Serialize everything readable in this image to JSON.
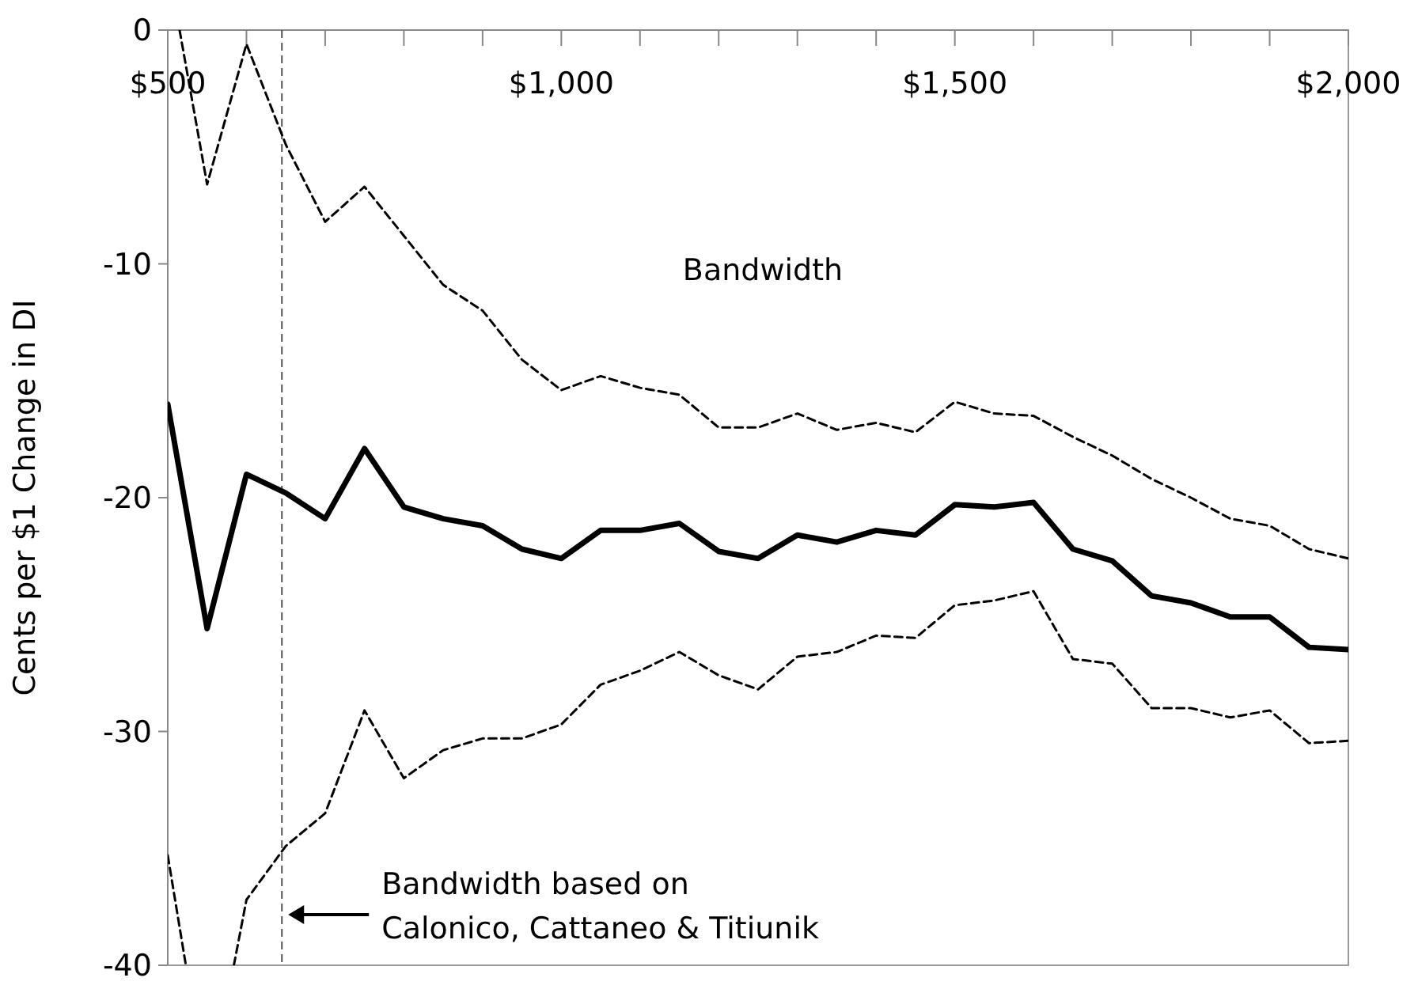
{
  "chart_data": {
    "type": "line",
    "xlabel": "Bandwidth",
    "ylabel": "Cents per $1 Change in DI",
    "x": [
      500,
      550,
      600,
      650,
      700,
      750,
      800,
      850,
      900,
      950,
      1000,
      1050,
      1100,
      1150,
      1200,
      1250,
      1300,
      1350,
      1400,
      1450,
      1500,
      1550,
      1600,
      1650,
      1700,
      1750,
      1800,
      1850,
      1900,
      1950,
      2000
    ],
    "series": [
      {
        "color": "#000000",
        "line_style": "solid",
        "values": [
          -16.0,
          -25.6,
          -19.0,
          -19.8,
          -20.9,
          -17.9,
          -20.4,
          -20.9,
          -21.2,
          -22.2,
          -22.6,
          -21.4,
          -21.4,
          -21.1,
          -22.3,
          -22.6,
          -21.6,
          -21.9,
          -21.4,
          -21.6,
          -20.3,
          -20.4,
          -20.2,
          -22.2,
          -22.7,
          -24.2,
          -24.5,
          -25.1,
          -25.1,
          -26.4,
          -26.5
        ]
      },
      {
        "color": "#000000",
        "line_style": "dashed",
        "x": [
          515,
          550,
          600,
          650,
          700,
          750,
          800,
          850,
          900,
          950,
          1000,
          1050,
          1100,
          1150,
          1200,
          1250,
          1300,
          1350,
          1400,
          1450,
          1500,
          1550,
          1600,
          1650,
          1700,
          1750,
          1800,
          1850,
          1900,
          1950,
          2000
        ],
        "values": [
          0,
          -6.6,
          -0.6,
          -4.9,
          -8.2,
          -6.7,
          -8.8,
          -10.9,
          -12.0,
          -14.1,
          -15.4,
          -14.8,
          -15.3,
          -15.6,
          -17.0,
          -17.0,
          -16.4,
          -17.1,
          -16.8,
          -17.2,
          -15.9,
          -16.4,
          -16.5,
          -17.4,
          -18.2,
          -19.2,
          -20.0,
          -20.9,
          -21.2,
          -22.2,
          -22.6
        ]
      },
      {
        "color": "#000000",
        "line_style": "dashed",
        "x": [
          500,
          523,
          550,
          584,
          600,
          650,
          700,
          750,
          800,
          850,
          900,
          950,
          1000,
          1050,
          1100,
          1150,
          1200,
          1250,
          1300,
          1350,
          1400,
          1450,
          1500,
          1550,
          1600,
          1650,
          1700,
          1750,
          1800,
          1850,
          1900,
          1950,
          2000
        ],
        "values": [
          -35.3,
          -40,
          null,
          -40,
          -37.2,
          -34.9,
          -33.5,
          -29.1,
          -32.0,
          -30.8,
          -30.3,
          -30.3,
          -29.7,
          -28.0,
          -27.4,
          -26.6,
          -27.6,
          -28.2,
          -26.8,
          -26.6,
          -25.9,
          -26.0,
          -24.6,
          -24.4,
          -24.0,
          -26.9,
          -27.1,
          -29.0,
          -29.0,
          -29.4,
          -29.1,
          -30.5,
          -30.4
        ]
      }
    ],
    "xlim": [
      500,
      2000
    ],
    "xticks": [
      {
        "value": 500,
        "label": "$500"
      },
      {
        "value": 600,
        "label": null
      },
      {
        "value": 700,
        "label": null
      },
      {
        "value": 800,
        "label": null
      },
      {
        "value": 900,
        "label": null
      },
      {
        "value": 1000,
        "label": "$1,000"
      },
      {
        "value": 1100,
        "label": null
      },
      {
        "value": 1200,
        "label": null
      },
      {
        "value": 1300,
        "label": null
      },
      {
        "value": 1400,
        "label": null
      },
      {
        "value": 1500,
        "label": "$1,500"
      },
      {
        "value": 1600,
        "label": null
      },
      {
        "value": 1700,
        "label": null
      },
      {
        "value": 1800,
        "label": null
      },
      {
        "value": 1900,
        "label": null
      },
      {
        "value": 2000,
        "label": "$2,000"
      }
    ],
    "ylim": [
      -40,
      0
    ],
    "yticks": [
      -40,
      -30,
      -20,
      -10,
      0
    ],
    "ref_lines": [
      {
        "axis": "x",
        "value": 645,
        "label": "Bandwidth based on\nCalonico, Cattaneo & Titiunik",
        "color": "#555555",
        "line_style": "dashed"
      }
    ],
    "grid": false
  }
}
